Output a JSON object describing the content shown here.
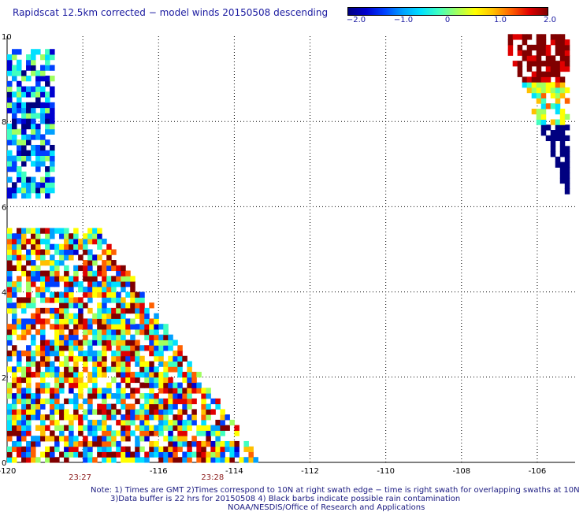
{
  "title": "Rapidscat 12.5km corrected − model winds 20150508 descending",
  "colorbar": {
    "ticks": [
      "−2.0",
      "−1.0",
      "0",
      "1.0",
      "2.0"
    ],
    "colors": [
      "#000080",
      "#0000d0",
      "#0040ff",
      "#00a0ff",
      "#00e0ff",
      "#40ffc0",
      "#a0ff60",
      "#ffff00",
      "#ffc000",
      "#ff6000",
      "#e00000",
      "#800000"
    ]
  },
  "axes": {
    "x_ticks": [
      "-120",
      "-116",
      "-114",
      "-112",
      "-110",
      "-108",
      "-106"
    ],
    "y_ticks": [
      "0",
      "2",
      "4",
      "6",
      "8",
      "10"
    ],
    "xlim": [
      -120,
      -105
    ],
    "ylim": [
      0,
      10
    ]
  },
  "times": [
    "23:27",
    "23:28"
  ],
  "notes": [
    "Note: 1) Times are GMT 2)Times correspond to 10N at right swath edge − time is right swath for overlapping swaths at 10N",
    "3)Data buffer is 22 hrs for 20150508 4) Black barbs indicate possible rain contamination",
    "NOAA/NESDIS/Office of Research and Applications"
  ],
  "chart_data": {
    "type": "heatmap",
    "title": "Rapidscat 12.5km corrected − model winds 20150508 descending",
    "xlim": [
      -120,
      -105
    ],
    "ylim": [
      0,
      10
    ],
    "value_range": [
      -2.0,
      2.0
    ],
    "cell_size_deg": 0.25,
    "swaths": [
      {
        "lon_min": -120,
        "lon_max": -118.8,
        "lat_min": 6.2,
        "lat_max": 9.7,
        "mean_value": -1.0
      },
      {
        "lon_min": -120,
        "lon_max": -113.3,
        "lat_min": 0.0,
        "lat_max": 5.5,
        "mean_value": 0.4
      },
      {
        "lon_min": -106.9,
        "lon_max": -105.2,
        "lat_min": 6.3,
        "lat_max": 10.0,
        "mean_value": 0.6
      }
    ]
  }
}
